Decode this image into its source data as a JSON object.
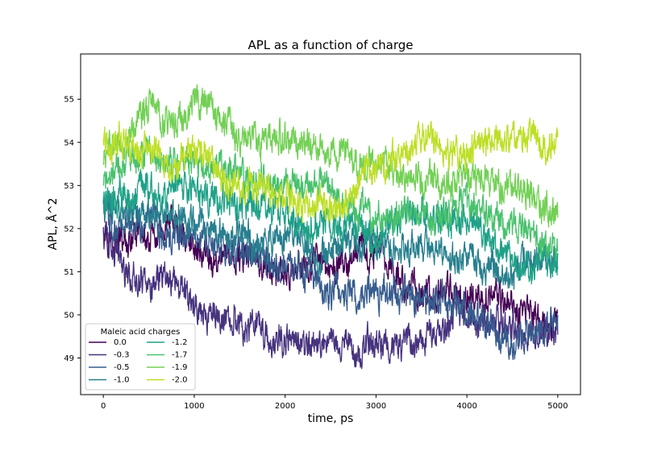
{
  "chart_data": {
    "type": "line",
    "title": "APL as a function of charge",
    "xlabel": "time, ps",
    "ylabel": "APL, Å^2",
    "xlim": [
      -250,
      5250
    ],
    "ylim": [
      48.15,
      56.05
    ],
    "xticks": [
      0,
      1000,
      2000,
      3000,
      4000,
      5000
    ],
    "yticks": [
      49,
      50,
      51,
      52,
      53,
      54,
      55
    ],
    "grid": false,
    "legend": {
      "title": "Maleic acid charges",
      "placement": "lower-left",
      "columns": 2
    },
    "series": [
      {
        "name": "0.0",
        "color": "#440154",
        "trend": [
          [
            0,
            52.2
          ],
          [
            200,
            51.6
          ],
          [
            500,
            51.6
          ],
          [
            800,
            51.6
          ],
          [
            1000,
            51.3
          ],
          [
            1500,
            51.2
          ],
          [
            2000,
            50.9
          ],
          [
            2500,
            51.0
          ],
          [
            3000,
            51.2
          ],
          [
            3500,
            50.5
          ],
          [
            4000,
            50.4
          ],
          [
            4500,
            50.3
          ],
          [
            5000,
            49.8
          ]
        ]
      },
      {
        "name": "-0.3",
        "color": "#46327e",
        "trend": [
          [
            0,
            51.8
          ],
          [
            200,
            51.3
          ],
          [
            500,
            50.9
          ],
          [
            800,
            50.6
          ],
          [
            1000,
            50.2
          ],
          [
            1500,
            49.9
          ],
          [
            2000,
            49.3
          ],
          [
            2500,
            49.4
          ],
          [
            3000,
            49.4
          ],
          [
            3500,
            49.5
          ],
          [
            4000,
            50.0
          ],
          [
            4500,
            49.9
          ],
          [
            5000,
            49.6
          ]
        ]
      },
      {
        "name": "-0.5",
        "color": "#365c8d",
        "trend": [
          [
            0,
            52.4
          ],
          [
            200,
            52.0
          ],
          [
            500,
            51.8
          ],
          [
            800,
            51.7
          ],
          [
            1000,
            51.5
          ],
          [
            1500,
            51.2
          ],
          [
            2000,
            51.1
          ],
          [
            2500,
            50.8
          ],
          [
            3000,
            50.6
          ],
          [
            3500,
            50.5
          ],
          [
            4000,
            50.1
          ],
          [
            4500,
            49.6
          ],
          [
            5000,
            50.0
          ]
        ]
      },
      {
        "name": "-1.0",
        "color": "#277f8e",
        "trend": [
          [
            0,
            52.5
          ],
          [
            200,
            52.6
          ],
          [
            500,
            52.4
          ],
          [
            800,
            52.2
          ],
          [
            1000,
            52.1
          ],
          [
            1500,
            51.8
          ],
          [
            2000,
            51.6
          ],
          [
            2500,
            51.3
          ],
          [
            3000,
            51.4
          ],
          [
            3500,
            51.5
          ],
          [
            4000,
            51.1
          ],
          [
            4500,
            51.0
          ],
          [
            5000,
            51.3
          ]
        ]
      },
      {
        "name": "-1.2",
        "color": "#1fa187",
        "trend": [
          [
            0,
            52.6
          ],
          [
            200,
            52.8
          ],
          [
            500,
            53.2
          ],
          [
            800,
            53.0
          ],
          [
            1000,
            52.8
          ],
          [
            1500,
            52.6
          ],
          [
            2000,
            52.2
          ],
          [
            2500,
            51.9
          ],
          [
            3000,
            51.8
          ],
          [
            3500,
            52.4
          ],
          [
            4000,
            52.3
          ],
          [
            4500,
            51.5
          ],
          [
            5000,
            51.0
          ]
        ]
      },
      {
        "name": "-1.7",
        "color": "#4ac16d",
        "trend": [
          [
            0,
            53.0
          ],
          [
            200,
            53.4
          ],
          [
            500,
            53.8
          ],
          [
            800,
            53.3
          ],
          [
            1000,
            53.5
          ],
          [
            1500,
            53.3
          ],
          [
            2000,
            52.8
          ],
          [
            2500,
            52.8
          ],
          [
            3000,
            52.2
          ],
          [
            3500,
            52.2
          ],
          [
            4000,
            52.5
          ],
          [
            4500,
            51.9
          ],
          [
            5000,
            51.6
          ]
        ]
      },
      {
        "name": "-1.9",
        "color": "#73d056",
        "trend": [
          [
            0,
            53.6
          ],
          [
            200,
            54.0
          ],
          [
            500,
            54.6
          ],
          [
            800,
            54.3
          ],
          [
            1000,
            54.8
          ],
          [
            1500,
            54.0
          ],
          [
            2000,
            53.9
          ],
          [
            2500,
            53.8
          ],
          [
            3000,
            53.5
          ],
          [
            3500,
            53.2
          ],
          [
            4000,
            53.0
          ],
          [
            4500,
            52.8
          ],
          [
            5000,
            52.6
          ]
        ]
      },
      {
        "name": "-2.0",
        "color": "#bddf26",
        "trend": [
          [
            0,
            54.2
          ],
          [
            200,
            54.2
          ],
          [
            500,
            54.1
          ],
          [
            800,
            53.2
          ],
          [
            1000,
            53.8
          ],
          [
            1500,
            53.2
          ],
          [
            2000,
            52.8
          ],
          [
            2500,
            52.4
          ],
          [
            3000,
            53.2
          ],
          [
            3500,
            53.8
          ],
          [
            4000,
            53.8
          ],
          [
            4500,
            54.4
          ],
          [
            5000,
            53.8
          ]
        ]
      }
    ]
  }
}
